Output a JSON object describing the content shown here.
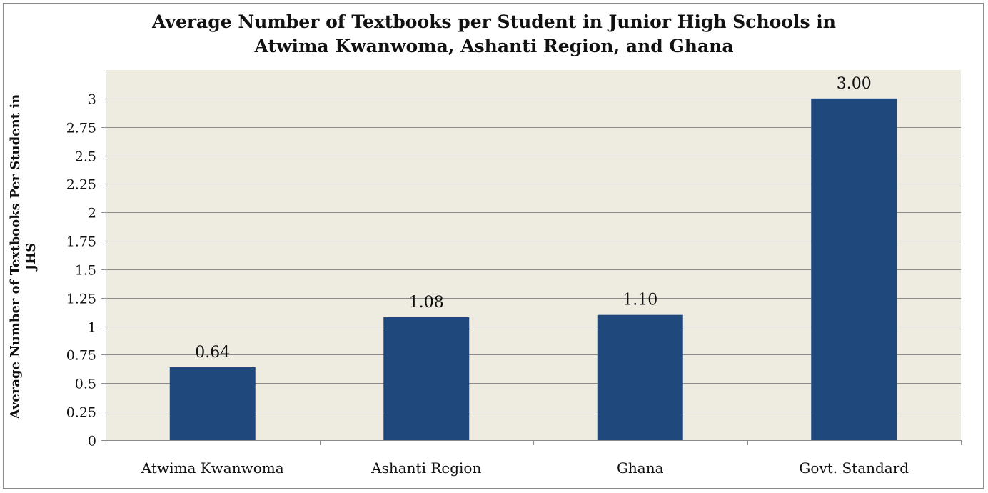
{
  "chart_data": {
    "type": "bar",
    "title_lines": [
      "Average Number of Textbooks per Student in Junior High Schools in",
      "Atwima Kwanwoma, Ashanti Region, and Ghana"
    ],
    "ylabel_lines": [
      "Average Number of Textbooks Per Student in",
      "JHS"
    ],
    "xlabel": "",
    "categories": [
      "Atwima Kwanwoma",
      "Ashanti Region",
      "Ghana",
      "Govt. Standard"
    ],
    "values": [
      0.64,
      1.08,
      1.1,
      3.0
    ],
    "data_labels": [
      "0.64",
      "1.08",
      "1.10",
      "3.00"
    ],
    "ylim": [
      0,
      3.25
    ],
    "yticks": [
      "0",
      "0.25",
      "0.5",
      "0.75",
      "1",
      "1.25",
      "1.5",
      "1.75",
      "2",
      "2.25",
      "2.5",
      "2.75",
      "3"
    ],
    "grid": true,
    "legend": "none",
    "colors": {
      "bar": "#1f497d",
      "plot_background": "#eeece1",
      "gridline": "#8c8c8c",
      "axis": "#8c8c8c"
    }
  }
}
